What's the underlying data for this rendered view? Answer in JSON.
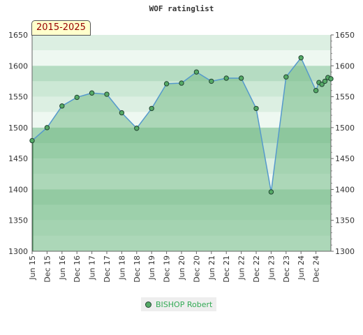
{
  "chart_data": {
    "type": "area",
    "title": "WOF ratinglist",
    "range_label": "2015-2025",
    "ylim": [
      1300,
      1650
    ],
    "y_ticks": [
      1300,
      1350,
      1400,
      1450,
      1500,
      1550,
      1600,
      1650
    ],
    "x_tick_labels": [
      "Jun 15",
      "Dec 15",
      "Jun 16",
      "Dec 16",
      "Jun 17",
      "Dec 17",
      "Jun 18",
      "Dec 18",
      "Jun 19",
      "Dec 19",
      "Jun 20",
      "Dec 20",
      "Jun 21",
      "Dec 21",
      "Jun 22",
      "Dec 22",
      "Jun 23",
      "Dec 23",
      "Jun 24",
      "Dec 24"
    ],
    "grid": true,
    "legend_position": "bottom-center",
    "colors": {
      "line": "#5599cc",
      "marker": "#55aa66",
      "area": "#77bb88",
      "legend_text": "#33aa55"
    },
    "series": [
      {
        "name": "BISHOP Robert",
        "points": [
          {
            "x": 0.0,
            "y": 1479
          },
          {
            "x": 1.0,
            "y": 1500
          },
          {
            "x": 2.0,
            "y": 1535
          },
          {
            "x": 3.0,
            "y": 1549
          },
          {
            "x": 4.0,
            "y": 1556
          },
          {
            "x": 5.0,
            "y": 1554
          },
          {
            "x": 6.0,
            "y": 1524
          },
          {
            "x": 7.0,
            "y": 1499
          },
          {
            "x": 8.0,
            "y": 1531
          },
          {
            "x": 9.0,
            "y": 1571
          },
          {
            "x": 10.0,
            "y": 1572
          },
          {
            "x": 11.0,
            "y": 1590
          },
          {
            "x": 12.0,
            "y": 1575
          },
          {
            "x": 13.0,
            "y": 1580
          },
          {
            "x": 14.0,
            "y": 1580
          },
          {
            "x": 15.0,
            "y": 1531
          },
          {
            "x": 16.0,
            "y": 1396
          },
          {
            "x": 17.0,
            "y": 1582
          },
          {
            "x": 18.0,
            "y": 1613
          },
          {
            "x": 19.0,
            "y": 1560
          },
          {
            "x": 19.2,
            "y": 1573
          },
          {
            "x": 19.4,
            "y": 1570
          },
          {
            "x": 19.6,
            "y": 1575
          },
          {
            "x": 19.8,
            "y": 1581
          },
          {
            "x": 20.0,
            "y": 1579
          }
        ]
      }
    ]
  }
}
